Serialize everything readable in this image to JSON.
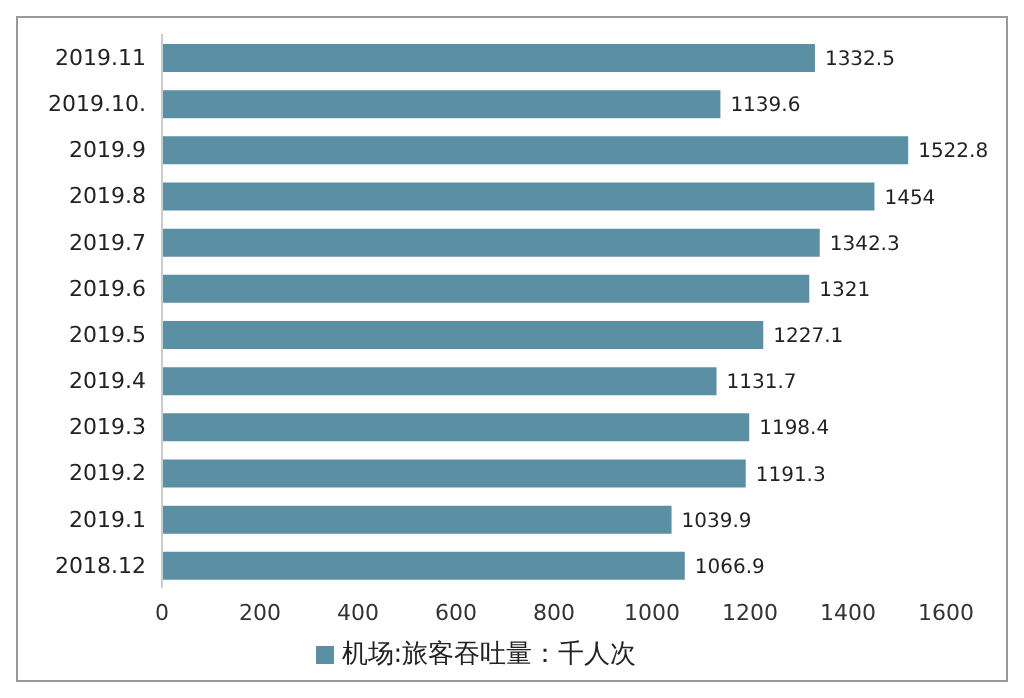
{
  "chart_data": {
    "type": "bar",
    "orientation": "horizontal",
    "categories": [
      "2019.11",
      "2019.10.",
      "2019.9",
      "2019.8",
      "2019.7",
      "2019.6",
      "2019.5",
      "2019.4",
      "2019.3",
      "2019.2",
      "2019.1",
      "2018.12"
    ],
    "series": [
      {
        "name": "机场:旅客吞吐量：千人次",
        "color": "#5b8fa3",
        "values": [
          1332.5,
          1139.6,
          1522.8,
          1454,
          1342.3,
          1321,
          1227.1,
          1131.7,
          1198.4,
          1191.3,
          1039.9,
          1066.9
        ]
      }
    ],
    "xlim": [
      0,
      1600
    ],
    "xticks": [
      0,
      200,
      400,
      600,
      800,
      1000,
      1200,
      1400,
      1600
    ],
    "data_labels": true,
    "legend": "bottom",
    "grid": false
  }
}
